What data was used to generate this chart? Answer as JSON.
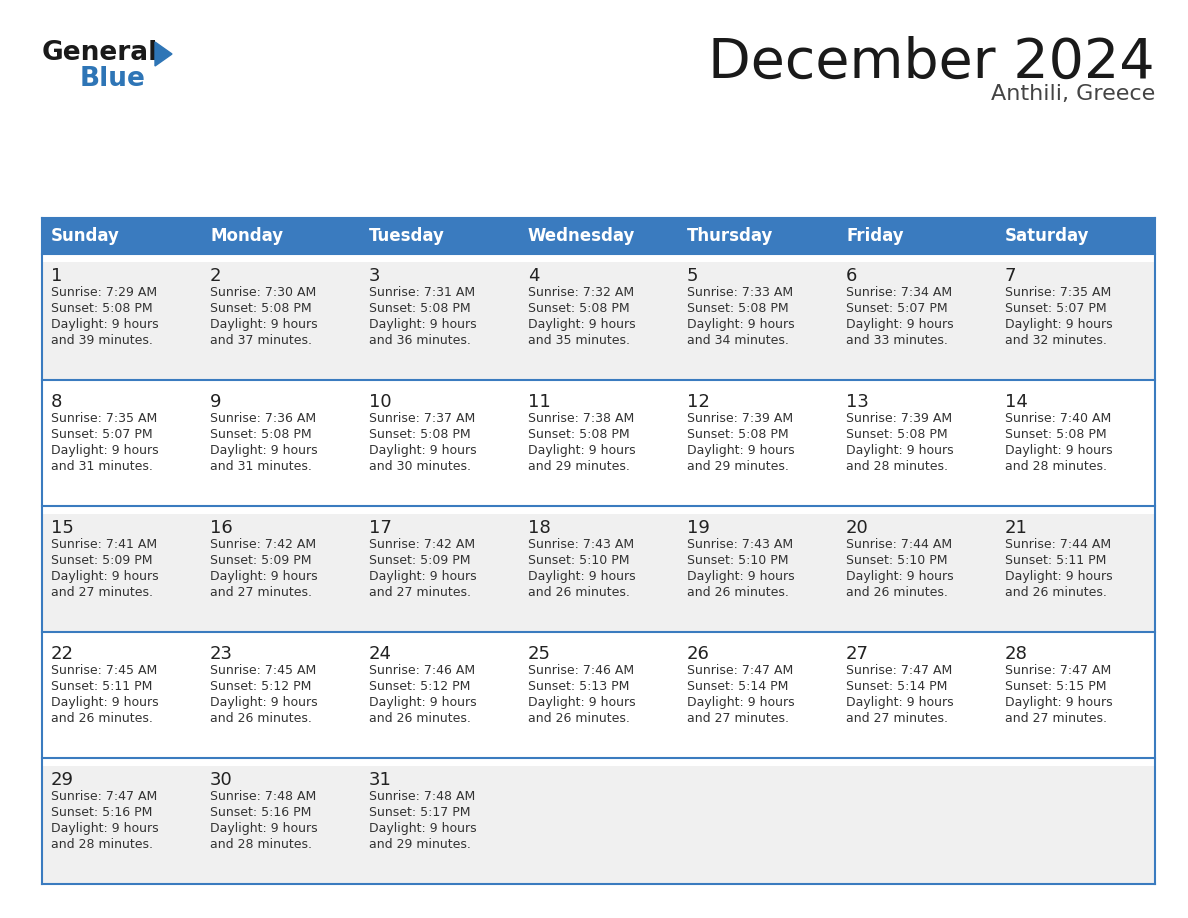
{
  "title": "December 2024",
  "subtitle": "Anthili, Greece",
  "header_bg": "#3a7bbf",
  "header_text": "#ffffff",
  "days_of_week": [
    "Sunday",
    "Monday",
    "Tuesday",
    "Wednesday",
    "Thursday",
    "Friday",
    "Saturday"
  ],
  "row_bg_even": "#f0f0f0",
  "row_bg_odd": "#ffffff",
  "cell_text_color": "#333333",
  "day_num_color": "#222222",
  "grid_line_color": "#3a7bbf",
  "calendar": [
    [
      {
        "day": 1,
        "sunrise": "7:29 AM",
        "sunset": "5:08 PM",
        "daylight_h": "9 hours",
        "daylight_m": "39 minutes"
      },
      {
        "day": 2,
        "sunrise": "7:30 AM",
        "sunset": "5:08 PM",
        "daylight_h": "9 hours",
        "daylight_m": "37 minutes"
      },
      {
        "day": 3,
        "sunrise": "7:31 AM",
        "sunset": "5:08 PM",
        "daylight_h": "9 hours",
        "daylight_m": "36 minutes"
      },
      {
        "day": 4,
        "sunrise": "7:32 AM",
        "sunset": "5:08 PM",
        "daylight_h": "9 hours",
        "daylight_m": "35 minutes"
      },
      {
        "day": 5,
        "sunrise": "7:33 AM",
        "sunset": "5:08 PM",
        "daylight_h": "9 hours",
        "daylight_m": "34 minutes"
      },
      {
        "day": 6,
        "sunrise": "7:34 AM",
        "sunset": "5:07 PM",
        "daylight_h": "9 hours",
        "daylight_m": "33 minutes"
      },
      {
        "day": 7,
        "sunrise": "7:35 AM",
        "sunset": "5:07 PM",
        "daylight_h": "9 hours",
        "daylight_m": "32 minutes"
      }
    ],
    [
      {
        "day": 8,
        "sunrise": "7:35 AM",
        "sunset": "5:07 PM",
        "daylight_h": "9 hours",
        "daylight_m": "31 minutes"
      },
      {
        "day": 9,
        "sunrise": "7:36 AM",
        "sunset": "5:08 PM",
        "daylight_h": "9 hours",
        "daylight_m": "31 minutes"
      },
      {
        "day": 10,
        "sunrise": "7:37 AM",
        "sunset": "5:08 PM",
        "daylight_h": "9 hours",
        "daylight_m": "30 minutes"
      },
      {
        "day": 11,
        "sunrise": "7:38 AM",
        "sunset": "5:08 PM",
        "daylight_h": "9 hours",
        "daylight_m": "29 minutes"
      },
      {
        "day": 12,
        "sunrise": "7:39 AM",
        "sunset": "5:08 PM",
        "daylight_h": "9 hours",
        "daylight_m": "29 minutes"
      },
      {
        "day": 13,
        "sunrise": "7:39 AM",
        "sunset": "5:08 PM",
        "daylight_h": "9 hours",
        "daylight_m": "28 minutes"
      },
      {
        "day": 14,
        "sunrise": "7:40 AM",
        "sunset": "5:08 PM",
        "daylight_h": "9 hours",
        "daylight_m": "28 minutes"
      }
    ],
    [
      {
        "day": 15,
        "sunrise": "7:41 AM",
        "sunset": "5:09 PM",
        "daylight_h": "9 hours",
        "daylight_m": "27 minutes"
      },
      {
        "day": 16,
        "sunrise": "7:42 AM",
        "sunset": "5:09 PM",
        "daylight_h": "9 hours",
        "daylight_m": "27 minutes"
      },
      {
        "day": 17,
        "sunrise": "7:42 AM",
        "sunset": "5:09 PM",
        "daylight_h": "9 hours",
        "daylight_m": "27 minutes"
      },
      {
        "day": 18,
        "sunrise": "7:43 AM",
        "sunset": "5:10 PM",
        "daylight_h": "9 hours",
        "daylight_m": "26 minutes"
      },
      {
        "day": 19,
        "sunrise": "7:43 AM",
        "sunset": "5:10 PM",
        "daylight_h": "9 hours",
        "daylight_m": "26 minutes"
      },
      {
        "day": 20,
        "sunrise": "7:44 AM",
        "sunset": "5:10 PM",
        "daylight_h": "9 hours",
        "daylight_m": "26 minutes"
      },
      {
        "day": 21,
        "sunrise": "7:44 AM",
        "sunset": "5:11 PM",
        "daylight_h": "9 hours",
        "daylight_m": "26 minutes"
      }
    ],
    [
      {
        "day": 22,
        "sunrise": "7:45 AM",
        "sunset": "5:11 PM",
        "daylight_h": "9 hours",
        "daylight_m": "26 minutes"
      },
      {
        "day": 23,
        "sunrise": "7:45 AM",
        "sunset": "5:12 PM",
        "daylight_h": "9 hours",
        "daylight_m": "26 minutes"
      },
      {
        "day": 24,
        "sunrise": "7:46 AM",
        "sunset": "5:12 PM",
        "daylight_h": "9 hours",
        "daylight_m": "26 minutes"
      },
      {
        "day": 25,
        "sunrise": "7:46 AM",
        "sunset": "5:13 PM",
        "daylight_h": "9 hours",
        "daylight_m": "26 minutes"
      },
      {
        "day": 26,
        "sunrise": "7:47 AM",
        "sunset": "5:14 PM",
        "daylight_h": "9 hours",
        "daylight_m": "27 minutes"
      },
      {
        "day": 27,
        "sunrise": "7:47 AM",
        "sunset": "5:14 PM",
        "daylight_h": "9 hours",
        "daylight_m": "27 minutes"
      },
      {
        "day": 28,
        "sunrise": "7:47 AM",
        "sunset": "5:15 PM",
        "daylight_h": "9 hours",
        "daylight_m": "27 minutes"
      }
    ],
    [
      {
        "day": 29,
        "sunrise": "7:47 AM",
        "sunset": "5:16 PM",
        "daylight_h": "9 hours",
        "daylight_m": "28 minutes"
      },
      {
        "day": 30,
        "sunrise": "7:48 AM",
        "sunset": "5:16 PM",
        "daylight_h": "9 hours",
        "daylight_m": "28 minutes"
      },
      {
        "day": 31,
        "sunrise": "7:48 AM",
        "sunset": "5:17 PM",
        "daylight_h": "9 hours",
        "daylight_m": "29 minutes"
      },
      null,
      null,
      null,
      null
    ]
  ],
  "logo_general_color": "#1a1a1a",
  "logo_blue_color": "#2e75b6",
  "figsize": [
    11.88,
    9.18
  ],
  "dpi": 100
}
